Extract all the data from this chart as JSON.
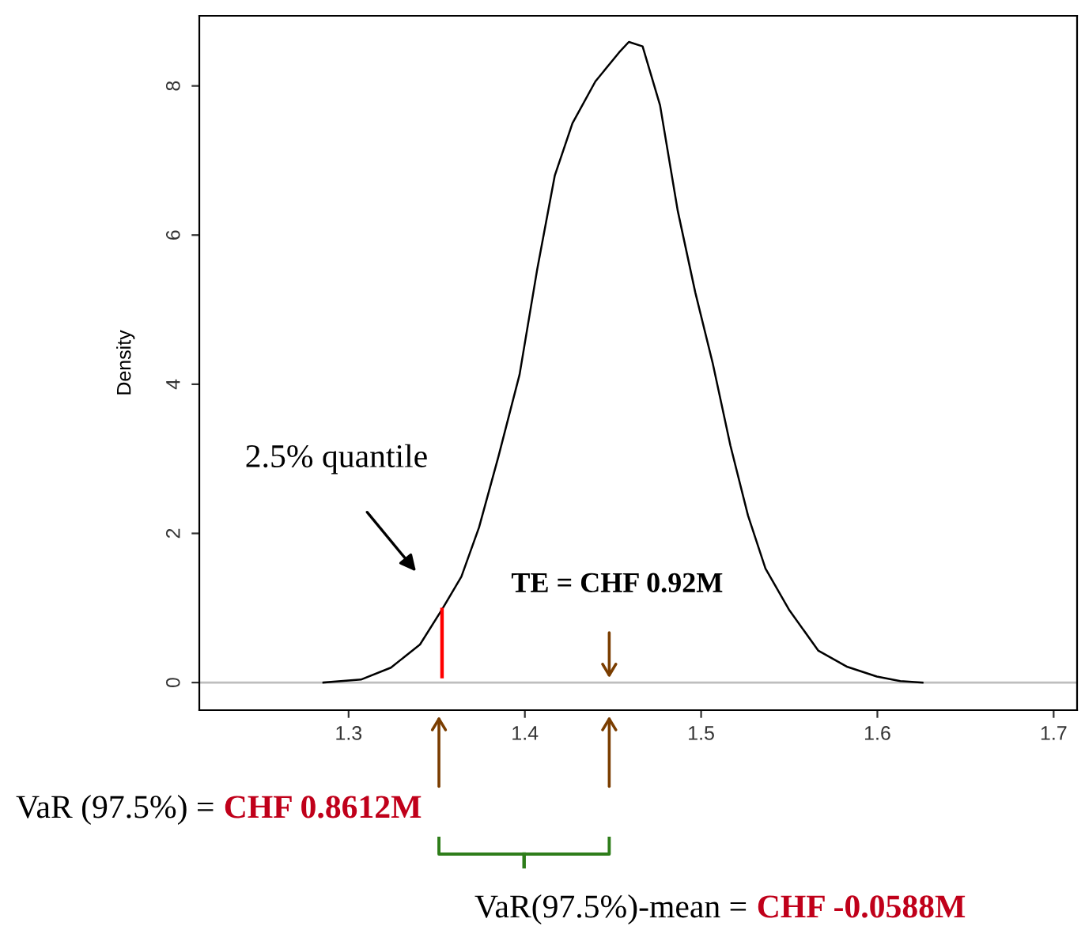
{
  "chart_data": {
    "type": "line",
    "ylabel": "Density",
    "xlim": [
      1.2153,
      1.7133
    ],
    "ylim": [
      -0.37,
      8.94
    ],
    "xticks": [
      1.3,
      1.4,
      1.5,
      1.6,
      1.7
    ],
    "yticks": [
      0,
      2,
      4,
      6,
      8
    ],
    "grid": false,
    "legend": false,
    "marker": "none",
    "line_style": "solid",
    "series": [
      {
        "color": "#000000",
        "x": [
          1.2857,
          1.307,
          1.324,
          1.3405,
          1.353,
          1.364,
          1.374,
          1.385,
          1.397,
          1.407,
          1.417,
          1.427,
          1.44,
          1.4535,
          1.459,
          1.4668,
          1.4767,
          1.4867,
          1.4967,
          1.5066,
          1.5166,
          1.5266,
          1.5365,
          1.5498,
          1.5664,
          1.583,
          1.5997,
          1.613,
          1.6256
        ],
        "values": [
          0,
          0.04,
          0.2,
          0.51,
          0.98,
          1.42,
          2.08,
          3.03,
          4.13,
          5.54,
          6.8,
          7.5,
          8.06,
          8.45,
          8.59,
          8.53,
          7.74,
          6.33,
          5.23,
          4.28,
          3.18,
          2.24,
          1.53,
          0.98,
          0.43,
          0.21,
          0.08,
          0.02,
          0
        ]
      }
    ],
    "ref_lines": [
      {
        "axis": "y",
        "value": 0,
        "color": "#bebebe"
      },
      {
        "axis": "x",
        "value": 1.353,
        "color": "#ff0000"
      }
    ],
    "annotations": [
      "2.5% quantile",
      "TE = CHF 0.92M",
      "VaR (97.5%) =",
      "CHF 0.8612M",
      "VaR(97.5%)-mean =",
      "CHF -0.0588M"
    ]
  }
}
